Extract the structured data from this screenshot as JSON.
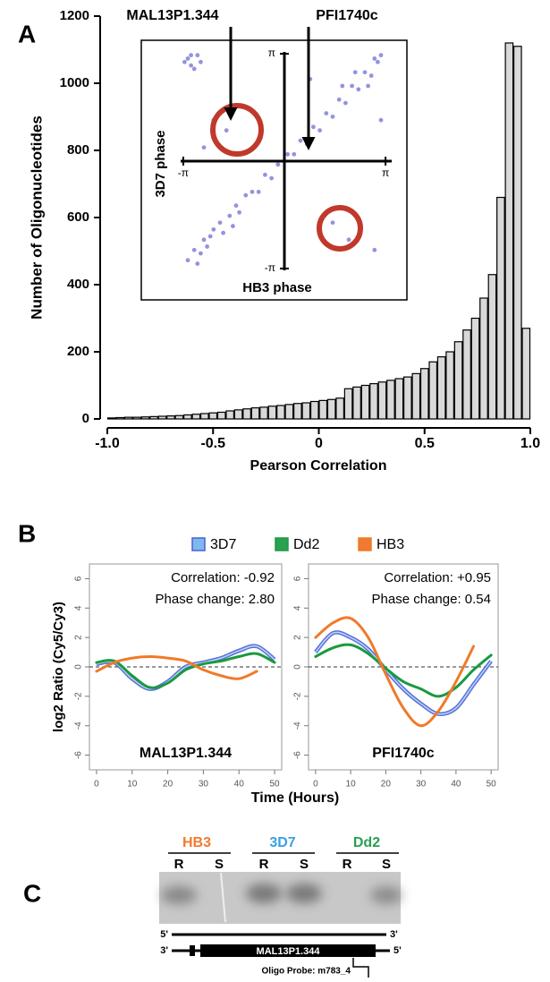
{
  "panel_labels": [
    "A",
    "B",
    "C"
  ],
  "chart_data": [
    {
      "type": "histogram",
      "ylabel": "Number of Oligonucleotides",
      "xlabel": "Pearson Correlation",
      "bins": [
        -1,
        -0.96,
        -0.92,
        -0.88,
        -0.84,
        -0.8,
        -0.76,
        -0.72,
        -0.68,
        -0.64,
        -0.6,
        -0.56,
        -0.52,
        -0.48,
        -0.44,
        -0.4,
        -0.36,
        -0.32,
        -0.28,
        -0.24,
        -0.2,
        -0.16,
        -0.12,
        -0.08,
        -0.04,
        0,
        0.04,
        0.08,
        0.12,
        0.16,
        0.2,
        0.24,
        0.28,
        0.32,
        0.36,
        0.4,
        0.44,
        0.48,
        0.52,
        0.56,
        0.6,
        0.64,
        0.68,
        0.72,
        0.76,
        0.8,
        0.84,
        0.88,
        0.92,
        0.96,
        1
      ],
      "counts": [
        3,
        4,
        5,
        5,
        6,
        7,
        8,
        9,
        10,
        12,
        14,
        16,
        18,
        20,
        24,
        27,
        30,
        33,
        35,
        38,
        40,
        43,
        46,
        48,
        52,
        55,
        58,
        62,
        90,
        95,
        100,
        105,
        110,
        115,
        120,
        125,
        135,
        150,
        170,
        185,
        200,
        230,
        265,
        300,
        360,
        430,
        660,
        1120,
        1110,
        270
      ],
      "color": "#d9d9d9",
      "xlim": [
        -1,
        1
      ],
      "xticks": [
        {
          "value": -1,
          "label": "-1.0"
        },
        {
          "value": -0.5,
          "label": "-0.5"
        },
        0,
        {
          "value": 0.5,
          "label": "0.5"
        },
        {
          "value": 1,
          "label": "1.0"
        }
      ],
      "ylim": [
        0,
        1200
      ],
      "yticks": [
        0,
        200,
        400,
        600,
        800,
        1000,
        1200
      ]
    },
    {
      "type": "scatter",
      "xlabel": "HB3 phase",
      "ylabel": "3D7 phase",
      "annotations": [
        "MAL13P1.344",
        "PFI1740c"
      ],
      "x": [
        -3.0,
        -2.8,
        -2.6,
        -2.5,
        -2.3,
        -2.2,
        -2.0,
        -1.9,
        -1.7,
        -1.5,
        -1.4,
        -1.2,
        -1.0,
        -0.8,
        -0.6,
        -0.4,
        -0.2,
        0.1,
        0.3,
        0.5,
        0.7,
        0.9,
        1.1,
        1.3,
        1.5,
        1.7,
        1.9,
        2.1,
        2.3,
        2.5,
        2.7,
        2.9,
        3.0,
        2.8,
        2.6,
        2.2,
        1.8,
        -2.7,
        -2.4,
        -1.6,
        -3.0,
        -2.9,
        -2.7,
        -2.8,
        -3.1,
        -2.6,
        -2.9,
        -2.2,
        -1.8,
        1.5,
        2.0,
        2.8,
        -2.5,
        0.8,
        3.0
      ],
      "y": [
        -2.9,
        -2.6,
        -2.7,
        -2.3,
        -2.2,
        -2.0,
        -1.8,
        -2.1,
        -1.6,
        -1.3,
        -1.5,
        -1.0,
        -0.9,
        -0.9,
        -0.4,
        -0.5,
        -0.1,
        0.2,
        0.2,
        0.6,
        0.5,
        1.0,
        0.9,
        1.4,
        1.3,
        1.8,
        1.7,
        2.2,
        2.1,
        2.6,
        2.5,
        2.9,
        3.1,
        3.0,
        2.2,
        2.6,
        2.2,
        -3.0,
        -2.5,
        -1.9,
        3.0,
        2.8,
        3.1,
        2.7,
        2.9,
        2.9,
        3.1,
        1.2,
        0.9,
        -1.8,
        -2.3,
        -2.6,
        0.4,
        2.4,
        1.2
      ],
      "color": "#4b4bc8",
      "xlim": [
        -3.5,
        3.5
      ],
      "xticks": [
        {
          "value": -3.1416,
          "label": "-π"
        },
        {
          "value": 3.1416,
          "label": "π"
        }
      ],
      "ylim": [
        -3.3,
        3.3
      ],
      "yticks": [
        {
          "value": -3.1416,
          "label": "-π"
        },
        {
          "value": 3.1416,
          "label": "π"
        }
      ]
    },
    {
      "type": "line",
      "title": "MAL13P1.344",
      "annotations": [
        "Correlation: -0.92",
        "Phase change: 2.80"
      ],
      "ylabel": "log2 Ratio (Cy5/Cy3)",
      "xlabel": "Time (Hours)",
      "x": [
        0,
        5,
        10,
        15,
        20,
        25,
        30,
        35,
        40,
        45,
        50
      ],
      "series": [
        {
          "name": "3D7",
          "color": "#4a5fd0",
          "swatch": "#7fb8f0",
          "values": [
            0.2,
            0.3,
            -0.8,
            -1.5,
            -1.0,
            0.0,
            0.3,
            0.6,
            1.1,
            1.4,
            0.5
          ]
        },
        {
          "name": "Dd2",
          "color": "#1a9a40",
          "swatch": "#2aa050",
          "values": [
            0.3,
            0.4,
            -0.6,
            -1.4,
            -1.1,
            -0.2,
            0.2,
            0.4,
            0.7,
            0.9,
            0.3
          ]
        },
        {
          "name": "HB3",
          "color": "#f07a2a",
          "swatch": "#f07a30",
          "values": [
            -0.3,
            0.3,
            0.6,
            0.7,
            0.6,
            0.4,
            -0.2,
            -0.6,
            -0.8,
            -0.3,
            null
          ]
        }
      ],
      "xlim": [
        -2,
        52
      ],
      "xticks": [
        0,
        10,
        20,
        30,
        40,
        50
      ],
      "ylim": [
        -7,
        7
      ],
      "yticks": [
        -6,
        -4,
        -2,
        0,
        2,
        4,
        6
      ],
      "reference_line": 0
    },
    {
      "type": "line",
      "title": "PFI1740c",
      "annotations": [
        "Correlation: +0.95",
        "Phase change: 0.54"
      ],
      "x": [
        0,
        5,
        10,
        15,
        20,
        25,
        30,
        35,
        40,
        45,
        50
      ],
      "series": [
        {
          "color": "#4a5fd0",
          "values": [
            1.0,
            2.3,
            2.0,
            1.2,
            -0.2,
            -1.5,
            -2.5,
            -3.2,
            -2.8,
            -1.2,
            0.4
          ]
        },
        {
          "color": "#1a9a40",
          "values": [
            0.7,
            1.3,
            1.5,
            0.9,
            -0.1,
            -1.0,
            -1.5,
            -2.0,
            -1.4,
            -0.2,
            0.8
          ]
        },
        {
          "color": "#f07a2a",
          "values": [
            2.0,
            3.0,
            3.3,
            2.0,
            -0.5,
            -2.8,
            -4.0,
            -3.0,
            -1.0,
            1.4,
            null
          ]
        }
      ],
      "xlim": [
        -2,
        52
      ],
      "xticks": [
        0,
        10,
        20,
        30,
        40,
        50
      ],
      "ylim": [
        -7,
        7
      ],
      "yticks": [
        -6,
        -4,
        -2,
        0,
        2,
        4,
        6
      ],
      "reference_line": 0
    }
  ],
  "blot": {
    "strains": [
      {
        "name": "HB3",
        "color": "#f07a30"
      },
      {
        "name": "3D7",
        "color": "#3aa0e0"
      },
      {
        "name": "Dd2",
        "color": "#2aa050"
      }
    ],
    "lanes": [
      "R",
      "S",
      "R",
      "S",
      "R",
      "S"
    ],
    "strand_top": [
      "5'",
      "3'"
    ],
    "strand_bottom": [
      "3'",
      "5'"
    ],
    "gene": "MAL13P1.344",
    "probe": "Oligo Probe: m783_4"
  }
}
